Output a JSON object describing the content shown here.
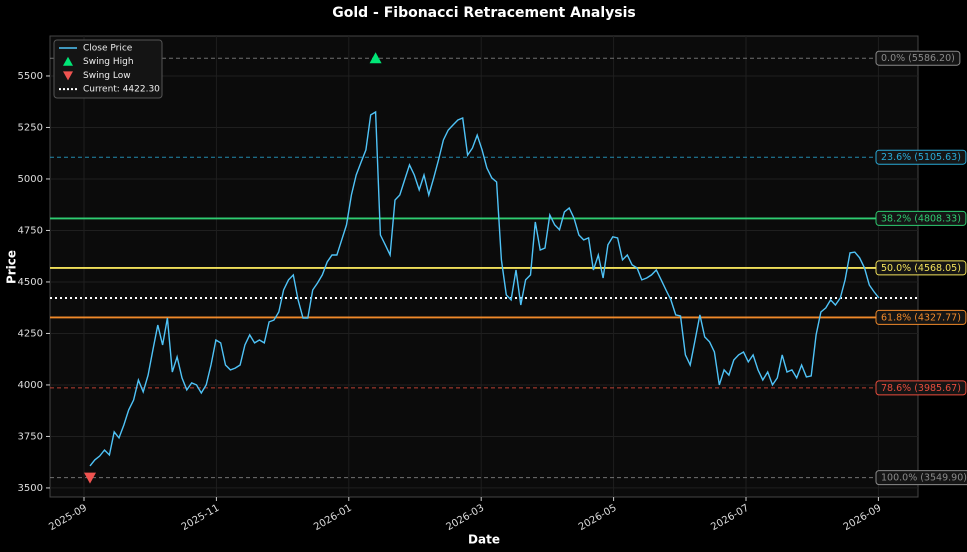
{
  "chart_data": {
    "type": "fibonacci",
    "title": "Gold - Fibonacci Retracement Analysis",
    "x_label": "Date",
    "y_label": "Price",
    "ylim": [
      3456,
      5694
    ],
    "yticks": [
      3500,
      3750,
      4000,
      4250,
      4500,
      4750,
      5000,
      5250,
      5500
    ],
    "xticks": [
      "2025-09",
      "2025-11",
      "2026-01",
      "2026-03",
      "2026-05",
      "2026-07",
      "2026-09"
    ],
    "grid": true,
    "legend": "upper left",
    "series": [
      {
        "name": "Close Price",
        "color": "#4fc3f7",
        "values": [
          3607,
          3636,
          3655,
          3684,
          3660,
          3772,
          3743,
          3806,
          3879,
          3927,
          4024,
          3966,
          4048,
          4170,
          4291,
          4194,
          4325,
          4063,
          4136,
          4034,
          3976,
          4010,
          4000,
          3961,
          4000,
          4097,
          4218,
          4204,
          4097,
          4073,
          4082,
          4097,
          4194,
          4243,
          4204,
          4218,
          4204,
          4306,
          4315,
          4354,
          4461,
          4510,
          4534,
          4413,
          4325,
          4325,
          4461,
          4495,
          4534,
          4597,
          4631,
          4631,
          4704,
          4777,
          4922,
          5019,
          5082,
          5141,
          5311,
          5325,
          4728,
          4680,
          4631,
          4898,
          4922,
          4995,
          5068,
          5019,
          4947,
          5019,
          4922,
          5005,
          5092,
          5189,
          5237,
          5262,
          5286,
          5296,
          5116,
          5150,
          5213,
          5141,
          5053,
          5005,
          4985,
          4607,
          4437,
          4413,
          4558,
          4388,
          4510,
          4534,
          4791,
          4655,
          4665,
          4825,
          4777,
          4753,
          4840,
          4859,
          4810,
          4728,
          4704,
          4714,
          4558,
          4631,
          4519,
          4680,
          4719,
          4714,
          4607,
          4631,
          4583,
          4568,
          4510,
          4519,
          4534,
          4558,
          4510,
          4461,
          4413,
          4340,
          4335,
          4146,
          4097,
          4218,
          4340,
          4233,
          4209,
          4160,
          4000,
          4073,
          4048,
          4121,
          4146,
          4160,
          4112,
          4146,
          4073,
          4024,
          4063,
          4000,
          4034,
          4146,
          4063,
          4073,
          4034,
          4097,
          4039,
          4044,
          4243,
          4354,
          4374,
          4413,
          4388,
          4422,
          4510,
          4641,
          4645,
          4617,
          4568,
          4485,
          4451,
          4422.3
        ]
      }
    ],
    "swing_high": {
      "name": "Swing High",
      "value": 5586.2,
      "color": "#00e676"
    },
    "swing_low": {
      "name": "Swing Low",
      "value": 3549.9,
      "color": "#ef5350"
    },
    "current": {
      "name": "Current: 4422.30",
      "value": 4422.3,
      "color": "#ffffff"
    },
    "fib_levels": [
      {
        "label": "0.0% (5586.20)",
        "value": 5586.2,
        "color": "#8a8a8a",
        "dashed": true
      },
      {
        "label": "23.6% (5105.63)",
        "value": 5105.63,
        "color": "#29a9d6",
        "dashed": true
      },
      {
        "label": "38.2% (4808.33)",
        "value": 4808.33,
        "color": "#2ecc71",
        "dashed": false
      },
      {
        "label": "50.0% (4568.05)",
        "value": 4568.05,
        "color": "#f1e05a",
        "dashed": false
      },
      {
        "label": "61.8% (4327.77)",
        "value": 4327.77,
        "color": "#f0892a",
        "dashed": false
      },
      {
        "label": "78.6% (3985.67)",
        "value": 3985.67,
        "color": "#e74c3c",
        "dashed": true
      },
      {
        "label": "100.0% (3549.90)",
        "value": 3549.9,
        "color": "#8a8a8a",
        "dashed": true
      }
    ]
  }
}
